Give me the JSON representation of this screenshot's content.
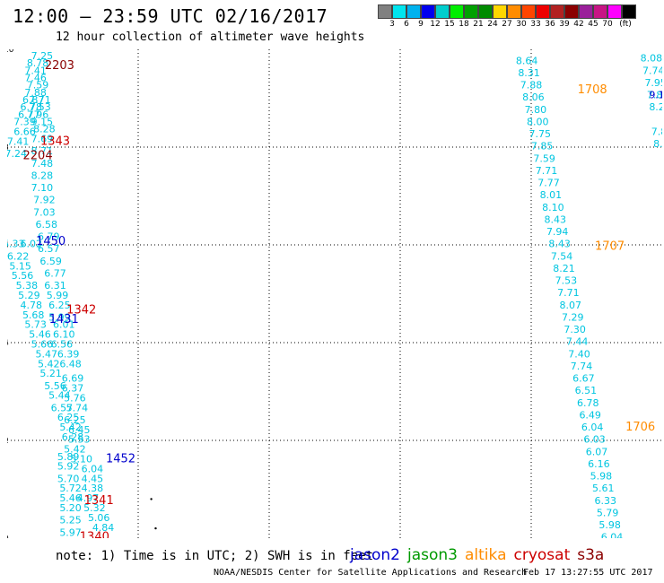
{
  "header": {
    "title": "12:00 – 23:59 UTC 02/16/2017",
    "subtitle": "12 hour collection of altimeter wave heights"
  },
  "legend": {
    "colors": [
      "#808080",
      "#00e5ee",
      "#00b2ee",
      "#0000ee",
      "#00cdcd",
      "#00ee00",
      "#00a000",
      "#008b00",
      "#ffd700",
      "#ff8c00",
      "#ff4500",
      "#ee0000",
      "#b22222",
      "#8b0000",
      "#9a1f9a",
      "#c71585",
      "#ff00ff",
      "#000000"
    ],
    "labels": [
      "3",
      "6",
      "9",
      "12",
      "15",
      "18",
      "21",
      "24",
      "27",
      "30",
      "33",
      "36",
      "39",
      "42",
      "45",
      "70",
      "(ft)"
    ]
  },
  "axes": {
    "y_ticks": [
      "0",
      "2",
      "4",
      "6",
      "8",
      "10"
    ],
    "x_ticks": [
      "-180",
      "-177",
      "-174",
      "-171",
      "-168",
      "-165"
    ]
  },
  "chart_data": {
    "type": "scatter",
    "xlim": [
      -180,
      -165
    ],
    "ylim": [
      0,
      10
    ],
    "grid": true,
    "colors": {
      "light": "#00c5e0",
      "blue": "#0000cc",
      "red": "#cc0000",
      "darkred": "#8b0000",
      "orange": "#ff8c00",
      "green": "#009900"
    },
    "tracks": [
      {
        "name": "track-left",
        "color": "light",
        "points": [
          [
            -179.2,
            9.8,
            "7.25"
          ],
          [
            -179.3,
            9.65,
            "8.78"
          ],
          [
            -179.35,
            9.5,
            "7.41"
          ],
          [
            -179.35,
            9.35,
            "7.46"
          ],
          [
            -179.3,
            9.2,
            "7.59"
          ],
          [
            -179.35,
            9.05,
            "7.88"
          ],
          [
            -179.4,
            8.9,
            "6.87"
          ],
          [
            -179.25,
            8.9,
            "7.71"
          ],
          [
            -179.45,
            8.75,
            "6.78"
          ],
          [
            -179.25,
            8.75,
            "7.53"
          ],
          [
            -179.5,
            8.6,
            "6.77"
          ],
          [
            -179.3,
            8.6,
            "7.96"
          ],
          [
            -179.6,
            8.45,
            "7.39"
          ],
          [
            -179.2,
            8.45,
            "9.15"
          ],
          [
            -179.6,
            8.25,
            "6.66"
          ],
          [
            -179.15,
            8.3,
            "8.28"
          ],
          [
            -179.75,
            8.05,
            "7.41"
          ],
          [
            -179.2,
            8.1,
            "7.69"
          ],
          [
            -179.8,
            7.8,
            "7.24"
          ],
          [
            -179.2,
            7.85,
            "8.71"
          ],
          [
            -179.2,
            7.6,
            "7.48"
          ],
          [
            -179.2,
            7.35,
            "8.28"
          ],
          [
            -179.2,
            7.1,
            "7.10"
          ],
          [
            -179.15,
            6.85,
            "7.92"
          ],
          [
            -179.15,
            6.6,
            "7.03"
          ],
          [
            -179.1,
            6.35,
            "6.58"
          ],
          [
            -179.05,
            6.1,
            "6.79"
          ],
          [
            -179.85,
            5.95,
            "5.33"
          ],
          [
            -179.45,
            5.95,
            "6.02"
          ],
          [
            -179.75,
            5.7,
            "6.22"
          ],
          [
            -179.05,
            5.85,
            "6.57"
          ],
          [
            -179.7,
            5.5,
            "5.15"
          ],
          [
            -179.0,
            5.6,
            "6.59"
          ],
          [
            -179.65,
            5.3,
            "5.56"
          ],
          [
            -178.9,
            5.35,
            "6.77"
          ],
          [
            -179.55,
            5.1,
            "5.38"
          ],
          [
            -178.9,
            5.1,
            "6.31"
          ],
          [
            -179.5,
            4.9,
            "5.29"
          ],
          [
            -178.85,
            4.9,
            "5.99"
          ],
          [
            -179.45,
            4.7,
            "4.78"
          ],
          [
            -178.8,
            4.7,
            "6.25"
          ],
          [
            -179.4,
            4.5,
            "5.68"
          ],
          [
            -178.8,
            4.45,
            "5.99"
          ],
          [
            -179.35,
            4.3,
            "5.73"
          ],
          [
            -178.7,
            4.3,
            "6.01"
          ],
          [
            -179.25,
            4.1,
            "5.46"
          ],
          [
            -178.7,
            4.1,
            "6.10"
          ],
          [
            -179.2,
            3.9,
            "5.66"
          ],
          [
            -178.75,
            3.9,
            "6.56"
          ],
          [
            -179.1,
            3.7,
            "5.47"
          ],
          [
            -178.6,
            3.7,
            "6.39"
          ],
          [
            -179.05,
            3.5,
            "5.42"
          ],
          [
            -178.55,
            3.5,
            "6.48"
          ],
          [
            -179.0,
            3.3,
            "5.21"
          ],
          [
            -178.5,
            3.2,
            "6.69"
          ],
          [
            -178.9,
            3.05,
            "5.56"
          ],
          [
            -178.5,
            3.0,
            "6.37"
          ],
          [
            -178.8,
            2.85,
            "5.44"
          ],
          [
            -178.45,
            2.8,
            "5.76"
          ],
          [
            -178.75,
            2.6,
            "6.57"
          ],
          [
            -178.4,
            2.6,
            "5.74"
          ],
          [
            -178.6,
            2.4,
            "6.25"
          ],
          [
            -178.45,
            2.35,
            "6.25"
          ],
          [
            -178.55,
            2.2,
            "5.42"
          ],
          [
            -178.35,
            2.15,
            "6.45"
          ],
          [
            -178.5,
            2.0,
            "6.28"
          ],
          [
            -178.35,
            1.95,
            "5.53"
          ],
          [
            -178.45,
            1.75,
            "5.42"
          ],
          [
            -178.6,
            1.6,
            "5.89"
          ],
          [
            -178.3,
            1.55,
            "5.10"
          ],
          [
            -178.6,
            1.4,
            "5.92"
          ],
          [
            -178.05,
            1.35,
            "6.04"
          ],
          [
            -178.6,
            1.15,
            "5.70"
          ],
          [
            -178.05,
            1.15,
            "4.45"
          ],
          [
            -178.55,
            0.95,
            "5.72"
          ],
          [
            -178.05,
            0.95,
            "4.38"
          ],
          [
            -178.55,
            0.75,
            "5.46"
          ],
          [
            -178.15,
            0.75,
            "4.97"
          ],
          [
            -178.55,
            0.55,
            "5.20"
          ],
          [
            -178.0,
            0.55,
            "5.32"
          ],
          [
            -178.55,
            0.3,
            "5.25"
          ],
          [
            -177.9,
            0.35,
            "5.06"
          ],
          [
            -178.55,
            0.05,
            "5.97"
          ],
          [
            -177.8,
            0.15,
            "4.84"
          ]
        ]
      },
      {
        "name": "track-mid",
        "color": "light",
        "points": [
          [
            -168.1,
            9.7,
            "8.64"
          ],
          [
            -168.05,
            9.45,
            "8.31"
          ],
          [
            -168.0,
            9.2,
            "7.88"
          ],
          [
            -167.95,
            8.95,
            "8.06"
          ],
          [
            -167.9,
            8.7,
            "7.80"
          ],
          [
            -167.85,
            8.45,
            "8.00"
          ],
          [
            -167.8,
            8.2,
            "7.75"
          ],
          [
            -167.75,
            7.95,
            "7.85"
          ],
          [
            -167.7,
            7.7,
            "7.59"
          ],
          [
            -167.65,
            7.45,
            "7.71"
          ],
          [
            -167.6,
            7.2,
            "7.77"
          ],
          [
            -167.55,
            6.95,
            "8.01"
          ],
          [
            -167.5,
            6.7,
            "8.10"
          ],
          [
            -167.45,
            6.45,
            "8.43"
          ],
          [
            -167.4,
            6.2,
            "7.94"
          ],
          [
            -167.35,
            5.95,
            "8.43"
          ],
          [
            -167.3,
            5.7,
            "7.54"
          ],
          [
            -167.25,
            5.45,
            "8.21"
          ],
          [
            -167.2,
            5.2,
            "7.53"
          ],
          [
            -167.15,
            4.95,
            "7.71"
          ],
          [
            -167.1,
            4.7,
            "8.07"
          ],
          [
            -167.05,
            4.45,
            "7.29"
          ],
          [
            -167.0,
            4.2,
            "7.30"
          ],
          [
            -166.95,
            3.95,
            "7.44"
          ],
          [
            -166.9,
            3.7,
            "7.40"
          ],
          [
            -166.85,
            3.45,
            "7.74"
          ],
          [
            -166.8,
            3.2,
            "6.67"
          ],
          [
            -166.75,
            2.95,
            "6.51"
          ],
          [
            -166.7,
            2.7,
            "6.78"
          ],
          [
            -166.65,
            2.45,
            "6.49"
          ],
          [
            -166.6,
            2.2,
            "6.04"
          ],
          [
            -166.55,
            1.95,
            "6.03"
          ],
          [
            -166.5,
            1.7,
            "6.07"
          ],
          [
            -166.45,
            1.45,
            "6.16"
          ],
          [
            -166.4,
            1.2,
            "5.98"
          ],
          [
            -166.35,
            0.95,
            "5.61"
          ],
          [
            -166.3,
            0.7,
            "6.33"
          ],
          [
            -166.25,
            0.45,
            "5.79"
          ],
          [
            -166.2,
            0.2,
            "5.98"
          ],
          [
            -166.15,
            -0.05,
            "6.04"
          ],
          [
            -166.1,
            -0.3,
            "6.26"
          ]
        ]
      },
      {
        "name": "track-right",
        "color": "light",
        "points": [
          [
            -165.3,
            10.0,
            "7.85"
          ],
          [
            -165.25,
            9.75,
            "8.08"
          ],
          [
            -165.2,
            9.5,
            "7.74"
          ],
          [
            -165.15,
            9.25,
            "7.95"
          ],
          [
            -165.1,
            9.0,
            "7.83"
          ],
          [
            -165.05,
            8.75,
            "8.29"
          ],
          [
            -165.0,
            8.25,
            "7.87"
          ],
          [
            -164.95,
            8.0,
            "8.69"
          ]
        ]
      }
    ],
    "labels": [
      {
        "x": -178.8,
        "y": 9.6,
        "text": "2203",
        "color": "darkred"
      },
      {
        "x": -178.9,
        "y": 8.05,
        "text": "1343",
        "color": "red"
      },
      {
        "x": -179.3,
        "y": 7.75,
        "text": "2204",
        "color": "darkred"
      },
      {
        "x": -179.0,
        "y": 6.0,
        "text": "1450",
        "color": "blue"
      },
      {
        "x": -178.3,
        "y": 4.6,
        "text": "1342",
        "color": "red"
      },
      {
        "x": -178.7,
        "y": 4.4,
        "text": "1431",
        "color": "blue"
      },
      {
        "x": -177.4,
        "y": 1.55,
        "text": "1452",
        "color": "blue"
      },
      {
        "x": -177.9,
        "y": 0.7,
        "text": "1341",
        "color": "red"
      },
      {
        "x": -178.0,
        "y": -0.05,
        "text": "1340",
        "color": "red"
      },
      {
        "x": -166.6,
        "y": 9.1,
        "text": "1708",
        "color": "orange"
      },
      {
        "x": -166.2,
        "y": 5.9,
        "text": "1707",
        "color": "orange"
      },
      {
        "x": -165.5,
        "y": 2.2,
        "text": "1706",
        "color": "orange"
      },
      {
        "x": -164.9,
        "y": 10.0,
        "text": "1",
        "color": "green"
      },
      {
        "x": -164.85,
        "y": -0.3,
        "text": "1",
        "color": "orange"
      }
    ],
    "extra_labels": [
      {
        "x": -165.05,
        "y": 9.0,
        "text": "9.14",
        "color": "blue"
      }
    ],
    "dots": [
      [
        -176.7,
        0.8
      ],
      [
        -176.6,
        0.2
      ]
    ]
  },
  "footer": {
    "note": "note: 1) Time is in UTC; 2) SWH is in feet",
    "satellites": [
      {
        "name": "jason2",
        "color": "#0000cc"
      },
      {
        "name": "jason3",
        "color": "#009900"
      },
      {
        "name": "altika",
        "color": "#ff8c00"
      },
      {
        "name": "cryosat",
        "color": "#cc0000"
      },
      {
        "name": "s3a",
        "color": "#8b0000"
      }
    ],
    "credit": "NOAA/NESDIS Center for Satellite Applications and Research",
    "timestamp": "Feb 17 13:27:55 UTC 2017"
  }
}
